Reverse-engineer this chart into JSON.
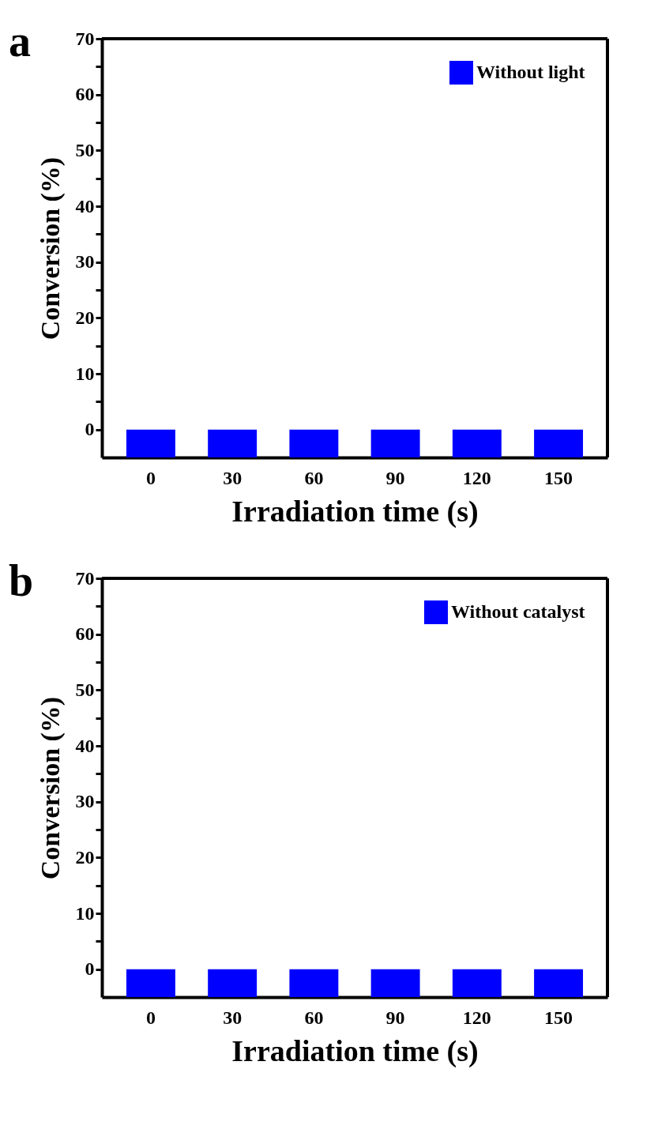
{
  "chart_data": [
    {
      "type": "bar",
      "annotations": [
        "a"
      ],
      "xlabel": "Irradiation time (s)",
      "ylabel": "Conversion (%)",
      "categories": [
        "0",
        "30",
        "60",
        "90",
        "120",
        "150"
      ],
      "series": [
        {
          "name": "Without light",
          "color": "#0000ff",
          "base": [
            -5,
            -5,
            -5,
            -5,
            -5,
            -5
          ],
          "values": [
            5,
            5,
            5,
            5,
            5,
            5
          ]
        }
      ],
      "ylim": [
        -5,
        70
      ],
      "yticks": [
        0,
        {
          "value": 5,
          "label": null
        },
        10,
        {
          "value": 15,
          "label": null
        },
        20,
        {
          "value": 25,
          "label": null
        },
        30,
        {
          "value": 35,
          "label": null
        },
        40,
        {
          "value": 45,
          "label": null
        },
        50,
        {
          "value": 55,
          "label": null
        },
        60,
        {
          "value": 65,
          "label": null
        },
        70
      ],
      "grid": false,
      "legend": "top right"
    },
    {
      "type": "bar",
      "annotations": [
        "b"
      ],
      "xlabel": "Irradiation time (s)",
      "ylabel": "Conversion (%)",
      "categories": [
        "0",
        "30",
        "60",
        "90",
        "120",
        "150"
      ],
      "series": [
        {
          "name": "Without catalyst",
          "color": "#0000ff",
          "base": [
            -5,
            -5,
            -5,
            -5,
            -5,
            -5
          ],
          "values": [
            5,
            5,
            5,
            5,
            5,
            5
          ]
        }
      ],
      "ylim": [
        -5,
        70
      ],
      "yticks": [
        0,
        {
          "value": 5,
          "label": null
        },
        10,
        {
          "value": 15,
          "label": null
        },
        20,
        {
          "value": 25,
          "label": null
        },
        30,
        {
          "value": 35,
          "label": null
        },
        40,
        {
          "value": 45,
          "label": null
        },
        50,
        {
          "value": 55,
          "label": null
        },
        60,
        {
          "value": 65,
          "label": null
        },
        70
      ],
      "grid": false,
      "legend": "top right"
    }
  ]
}
